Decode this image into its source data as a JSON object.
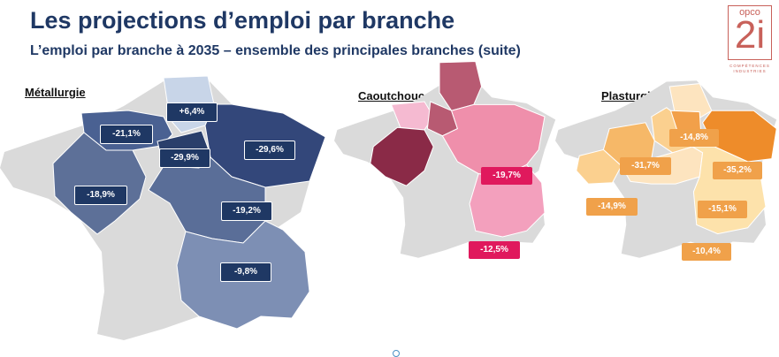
{
  "header": {
    "title": "Les projections d’emploi par branche",
    "subtitle": "L’emploi par branche à 2035 – ensemble des principales branches (suite)"
  },
  "logo": {
    "top": "opco",
    "main": "2i",
    "sub1": "COMPÉTENCES",
    "sub2": "INDUSTRIES",
    "color": "#c8615a"
  },
  "panels": [
    {
      "label": "Métallurgie",
      "badges": [
        "+6,4%",
        "-21,1%",
        "-29,9%",
        "-29,6%",
        "-18,9%",
        "-19,2%",
        "-9,8%"
      ]
    },
    {
      "label": "Caoutchouc",
      "badges": [
        "-19,7%",
        "-12,5%"
      ]
    },
    {
      "label": "Plasturgie",
      "badges": [
        "-14,8%",
        "-31,7%",
        "-35,2%",
        "-14,9%",
        "-15,1%",
        "-10,4%"
      ]
    }
  ],
  "colors": {
    "title": "#1f3864",
    "map_base": "#d9d9d9",
    "metallurgie_dark": "#2e4573",
    "caoutchouc_accent": "#e0195d",
    "plasturgie_accent": "#f0a14a"
  }
}
